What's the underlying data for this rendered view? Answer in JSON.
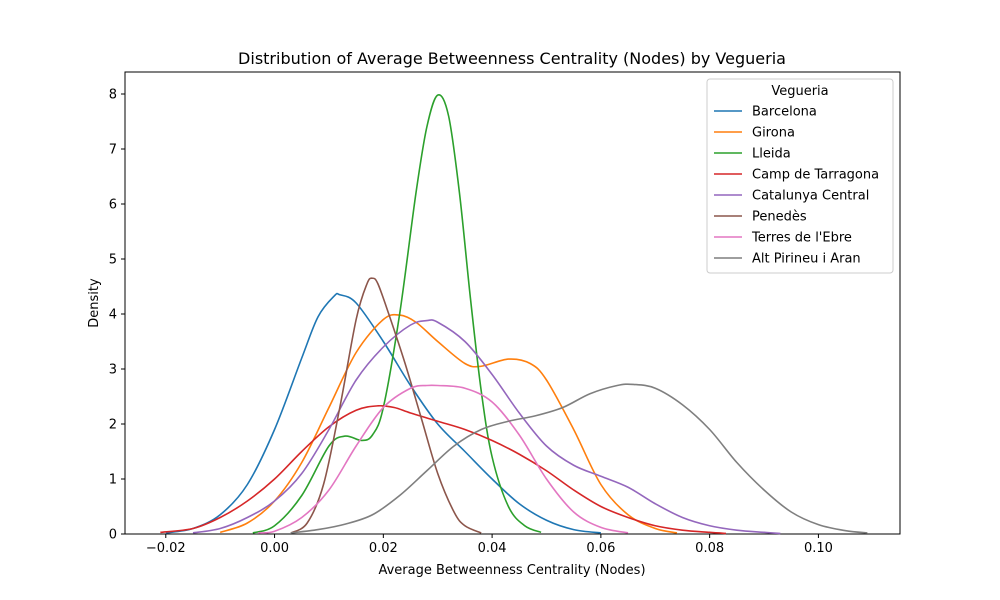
{
  "chart_data": {
    "type": "line",
    "title": "Distribution of Average Betweenness Centrality (Nodes) by Vegueria",
    "xlabel": "Average Betweenness Centrality (Nodes)",
    "ylabel": "Density",
    "xlim": [
      -0.0275,
      0.115
    ],
    "ylim": [
      0,
      8.4
    ],
    "xticks": [
      -0.02,
      0.0,
      0.02,
      0.04,
      0.06,
      0.08,
      0.1
    ],
    "xtick_labels": [
      "−0.02",
      "0.00",
      "0.02",
      "0.04",
      "0.06",
      "0.08",
      "0.10"
    ],
    "yticks": [
      0,
      1,
      2,
      3,
      4,
      5,
      6,
      7,
      8
    ],
    "ytick_labels": [
      "0",
      "1",
      "2",
      "3",
      "4",
      "5",
      "6",
      "7",
      "8"
    ],
    "legend_title": "Vegueria",
    "legend_position": "top-right",
    "series": [
      {
        "name": "Barcelona",
        "color": "#1f77b4",
        "x": [
          -0.02,
          -0.015,
          -0.01,
          -0.005,
          0.0,
          0.005,
          0.008,
          0.011,
          0.012,
          0.015,
          0.02,
          0.025,
          0.03,
          0.035,
          0.04,
          0.045,
          0.05,
          0.055,
          0.06
        ],
        "y": [
          0.02,
          0.1,
          0.35,
          0.9,
          1.9,
          3.2,
          3.95,
          4.33,
          4.35,
          4.2,
          3.5,
          2.7,
          2.0,
          1.5,
          1.0,
          0.55,
          0.25,
          0.08,
          0.02
        ]
      },
      {
        "name": "Girona",
        "color": "#ff7f0e",
        "x": [
          -0.01,
          -0.005,
          0.0,
          0.005,
          0.01,
          0.015,
          0.02,
          0.023,
          0.026,
          0.03,
          0.035,
          0.038,
          0.043,
          0.047,
          0.05,
          0.055,
          0.06,
          0.065,
          0.07,
          0.074
        ],
        "y": [
          0.03,
          0.2,
          0.6,
          1.3,
          2.3,
          3.3,
          3.9,
          3.98,
          3.85,
          3.5,
          3.1,
          3.05,
          3.18,
          3.1,
          2.8,
          1.9,
          0.9,
          0.35,
          0.1,
          0.02
        ]
      },
      {
        "name": "Lleida",
        "color": "#2ca02c",
        "x": [
          -0.004,
          0.0,
          0.005,
          0.01,
          0.013,
          0.016,
          0.018,
          0.02,
          0.023,
          0.026,
          0.028,
          0.03,
          0.032,
          0.034,
          0.036,
          0.038,
          0.04,
          0.043,
          0.046,
          0.049
        ],
        "y": [
          0.02,
          0.15,
          0.7,
          1.6,
          1.78,
          1.7,
          1.8,
          2.3,
          4.0,
          6.2,
          7.4,
          7.98,
          7.6,
          6.2,
          4.3,
          2.6,
          1.4,
          0.5,
          0.15,
          0.03
        ]
      },
      {
        "name": "Camp de Tarragona",
        "color": "#d62728",
        "x": [
          -0.021,
          -0.015,
          -0.01,
          -0.005,
          0.0,
          0.005,
          0.01,
          0.015,
          0.019,
          0.022,
          0.025,
          0.03,
          0.035,
          0.04,
          0.045,
          0.05,
          0.055,
          0.06,
          0.065,
          0.07,
          0.075,
          0.08,
          0.083
        ],
        "y": [
          0.03,
          0.1,
          0.3,
          0.6,
          1.0,
          1.5,
          1.95,
          2.25,
          2.33,
          2.3,
          2.2,
          2.05,
          1.9,
          1.7,
          1.45,
          1.15,
          0.8,
          0.5,
          0.3,
          0.15,
          0.07,
          0.03,
          0.01
        ]
      },
      {
        "name": "Catalunya Central",
        "color": "#9467bd",
        "x": [
          -0.015,
          -0.01,
          -0.005,
          0.0,
          0.005,
          0.01,
          0.015,
          0.02,
          0.025,
          0.028,
          0.03,
          0.035,
          0.04,
          0.045,
          0.05,
          0.055,
          0.06,
          0.065,
          0.07,
          0.075,
          0.08,
          0.085,
          0.09,
          0.093
        ],
        "y": [
          0.02,
          0.1,
          0.3,
          0.6,
          1.1,
          1.9,
          2.8,
          3.4,
          3.8,
          3.88,
          3.85,
          3.5,
          2.9,
          2.2,
          1.6,
          1.25,
          1.05,
          0.85,
          0.55,
          0.3,
          0.15,
          0.07,
          0.03,
          0.01
        ]
      },
      {
        "name": "Penedès",
        "color": "#8c564b",
        "x": [
          0.003,
          0.006,
          0.009,
          0.012,
          0.015,
          0.017,
          0.018,
          0.019,
          0.021,
          0.024,
          0.027,
          0.03,
          0.033,
          0.035,
          0.038
        ],
        "y": [
          0.02,
          0.2,
          0.9,
          2.3,
          3.9,
          4.55,
          4.65,
          4.55,
          4.0,
          3.1,
          2.1,
          1.1,
          0.4,
          0.15,
          0.02
        ]
      },
      {
        "name": "Terres de l'Ebre",
        "color": "#e377c2",
        "x": [
          -0.003,
          0.0,
          0.005,
          0.01,
          0.015,
          0.02,
          0.025,
          0.028,
          0.03,
          0.035,
          0.04,
          0.045,
          0.05,
          0.055,
          0.06,
          0.065
        ],
        "y": [
          0.02,
          0.05,
          0.3,
          0.8,
          1.6,
          2.3,
          2.65,
          2.7,
          2.7,
          2.65,
          2.4,
          1.8,
          1.0,
          0.4,
          0.12,
          0.02
        ]
      },
      {
        "name": "Alt Pirineu i Aran",
        "color": "#7f7f7f",
        "x": [
          0.003,
          0.008,
          0.013,
          0.018,
          0.023,
          0.028,
          0.033,
          0.038,
          0.043,
          0.048,
          0.053,
          0.058,
          0.063,
          0.066,
          0.07,
          0.075,
          0.08,
          0.085,
          0.09,
          0.095,
          0.1,
          0.105,
          0.109
        ],
        "y": [
          0.02,
          0.08,
          0.18,
          0.35,
          0.7,
          1.15,
          1.6,
          1.9,
          2.05,
          2.15,
          2.3,
          2.55,
          2.7,
          2.72,
          2.65,
          2.35,
          1.9,
          1.3,
          0.8,
          0.4,
          0.17,
          0.06,
          0.02
        ]
      }
    ]
  }
}
